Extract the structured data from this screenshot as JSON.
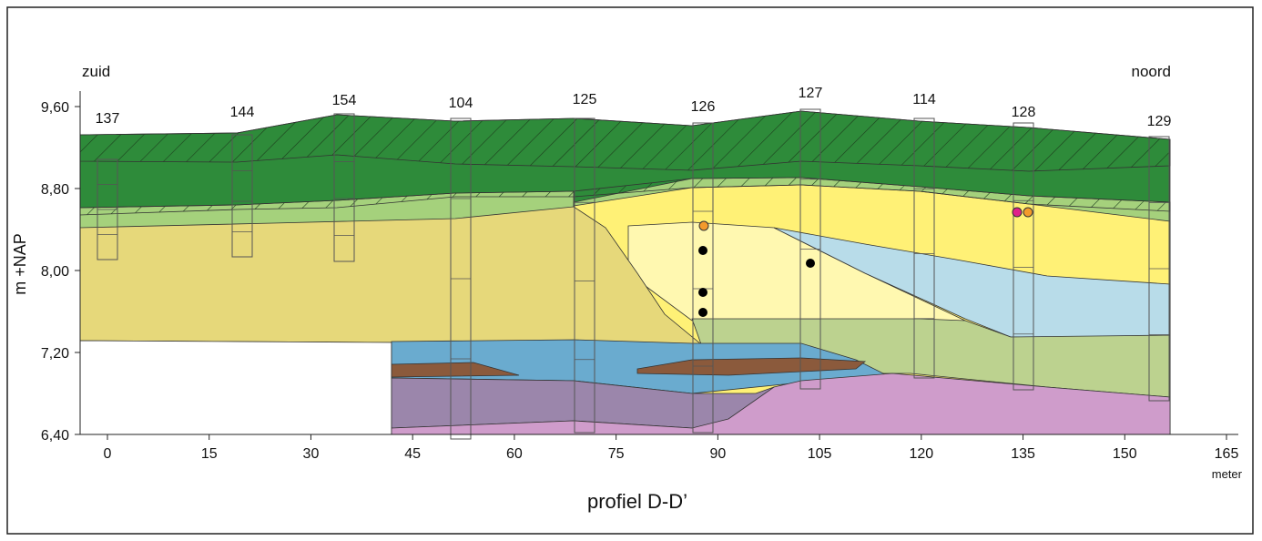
{
  "title": "profiel D-D’",
  "direction_labels": {
    "left": "zuid",
    "right": "noord"
  },
  "y_axis": {
    "label": "m +NAP",
    "ticks": [
      "9,60",
      "8,80",
      "8,00",
      "7,20",
      "6,40"
    ]
  },
  "x_axis": {
    "ticks": [
      0,
      15,
      30,
      45,
      60,
      75,
      90,
      105,
      120,
      135,
      150,
      165
    ],
    "unit": "meter"
  },
  "boreholes": [
    "137",
    "144",
    "154",
    "104",
    "125",
    "126",
    "127",
    "114",
    "128",
    "129"
  ]
}
